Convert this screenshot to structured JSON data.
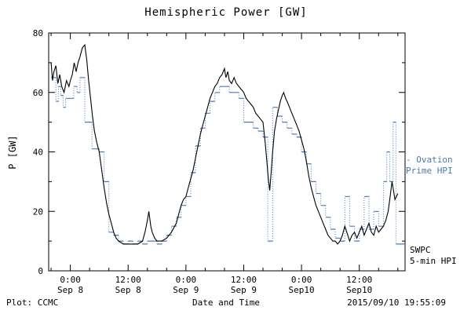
{
  "title": "Hemispheric Power [GW]",
  "axes": {
    "y_label": "P [GW]",
    "x_label": "Date and Time"
  },
  "footer": {
    "left": "Plot: CCMC",
    "right": "2015/09/10 19:55:09"
  },
  "legend": {
    "ovation_line1": "- Ovation",
    "ovation_line2": "Prime HPI",
    "swpc_line1": "SWPC",
    "swpc_line2": "5-min HPI"
  },
  "chart_data": {
    "type": "line",
    "title": "Hemispheric Power [GW]",
    "xlabel": "Date and Time",
    "ylabel": "P [GW]",
    "x_unit": "hours relative to Sep 8 00:00",
    "xlim": [
      -4.5,
      69.5
    ],
    "ylim": [
      0,
      80
    ],
    "yticks": [
      0,
      20,
      40,
      60,
      80
    ],
    "y_minor_step": 10,
    "x_minor_step": 4,
    "grid": false,
    "legend_position": "right-outside",
    "colors": {
      "ovation": "#4b79b8",
      "swpc": "#000000"
    },
    "xticks": [
      {
        "t": 0,
        "line1": "0:00",
        "line2": "Sep 8"
      },
      {
        "t": 12,
        "line1": "12:00",
        "line2": "Sep 8"
      },
      {
        "t": 24,
        "line1": "0:00",
        "line2": "Sep 9"
      },
      {
        "t": 36,
        "line1": "12:00",
        "line2": "Sep 9"
      },
      {
        "t": 48,
        "line1": "0:00",
        "line2": "Sep10"
      },
      {
        "t": 60,
        "line1": "12:00",
        "line2": "Sep10"
      }
    ],
    "series": [
      {
        "name": "Ovation Prime HPI",
        "style": "step-dotted",
        "points": [
          [
            -4,
            65
          ],
          [
            -3,
            57
          ],
          [
            -2.5,
            62
          ],
          [
            -2,
            59
          ],
          [
            -1.5,
            55
          ],
          [
            -1,
            58
          ],
          [
            0,
            58
          ],
          [
            0.7,
            62
          ],
          [
            1.4,
            60
          ],
          [
            2,
            65
          ],
          [
            3,
            50
          ],
          [
            4.5,
            41
          ],
          [
            6,
            40
          ],
          [
            7,
            30
          ],
          [
            8,
            13
          ],
          [
            9,
            12
          ],
          [
            10,
            10
          ],
          [
            11,
            9
          ],
          [
            12,
            10
          ],
          [
            13,
            9
          ],
          [
            14,
            10
          ],
          [
            15,
            9
          ],
          [
            16,
            10
          ],
          [
            17,
            10
          ],
          [
            18,
            9
          ],
          [
            19,
            10
          ],
          [
            20,
            12
          ],
          [
            21,
            15
          ],
          [
            22,
            18
          ],
          [
            23,
            22
          ],
          [
            24,
            25
          ],
          [
            25,
            33
          ],
          [
            26,
            42
          ],
          [
            27,
            48
          ],
          [
            28,
            53
          ],
          [
            29,
            57
          ],
          [
            30,
            60
          ],
          [
            31,
            62
          ],
          [
            32,
            62
          ],
          [
            33,
            60
          ],
          [
            34,
            60
          ],
          [
            35,
            58
          ],
          [
            36,
            50
          ],
          [
            37,
            50
          ],
          [
            38,
            48
          ],
          [
            39,
            47
          ],
          [
            40,
            45
          ],
          [
            41,
            10
          ],
          [
            42,
            55
          ],
          [
            43,
            52
          ],
          [
            44,
            50
          ],
          [
            45,
            48
          ],
          [
            46,
            46
          ],
          [
            47,
            45
          ],
          [
            48,
            40
          ],
          [
            49,
            36
          ],
          [
            50,
            30
          ],
          [
            51,
            26
          ],
          [
            52,
            22
          ],
          [
            53,
            18
          ],
          [
            54,
            14
          ],
          [
            55,
            11
          ],
          [
            56,
            10
          ],
          [
            57,
            25
          ],
          [
            58,
            15
          ],
          [
            59,
            10
          ],
          [
            60,
            14
          ],
          [
            61,
            25
          ],
          [
            62,
            14
          ],
          [
            63,
            20
          ],
          [
            64,
            15
          ],
          [
            65,
            30
          ],
          [
            65.7,
            40
          ],
          [
            66.3,
            30
          ],
          [
            67,
            50
          ],
          [
            67.6,
            9
          ]
        ]
      },
      {
        "name": "SWPC 5-min HPI",
        "style": "solid",
        "points": [
          [
            -4,
            70
          ],
          [
            -3.7,
            64
          ],
          [
            -3.4,
            67
          ],
          [
            -3,
            69
          ],
          [
            -2.6,
            63
          ],
          [
            -2.2,
            66
          ],
          [
            -1.8,
            62
          ],
          [
            -1.3,
            60
          ],
          [
            -0.8,
            64
          ],
          [
            -0.3,
            62
          ],
          [
            0,
            64
          ],
          [
            0.4,
            66
          ],
          [
            0.8,
            70
          ],
          [
            1.2,
            67
          ],
          [
            1.6,
            70
          ],
          [
            2,
            72
          ],
          [
            2.5,
            75
          ],
          [
            3,
            76
          ],
          [
            3.4,
            71
          ],
          [
            3.8,
            64
          ],
          [
            4.2,
            58
          ],
          [
            4.6,
            52
          ],
          [
            5,
            47
          ],
          [
            5.5,
            43
          ],
          [
            6,
            40
          ],
          [
            6.5,
            34
          ],
          [
            7,
            28
          ],
          [
            7.5,
            23
          ],
          [
            8,
            19
          ],
          [
            8.5,
            16
          ],
          [
            9,
            13
          ],
          [
            9.5,
            11
          ],
          [
            10,
            10
          ],
          [
            11,
            9
          ],
          [
            12,
            9
          ],
          [
            13,
            9
          ],
          [
            14,
            9
          ],
          [
            15,
            10
          ],
          [
            15.5,
            13
          ],
          [
            16,
            17
          ],
          [
            16.3,
            20
          ],
          [
            16.7,
            15
          ],
          [
            17,
            13
          ],
          [
            17.5,
            11
          ],
          [
            18,
            10
          ],
          [
            19,
            10
          ],
          [
            20,
            11
          ],
          [
            21,
            13
          ],
          [
            22,
            16
          ],
          [
            22.5,
            19
          ],
          [
            23,
            22
          ],
          [
            23.5,
            24
          ],
          [
            24,
            25
          ],
          [
            24.5,
            28
          ],
          [
            25,
            31
          ],
          [
            25.5,
            34
          ],
          [
            26,
            38
          ],
          [
            26.5,
            42
          ],
          [
            27,
            46
          ],
          [
            27.5,
            49
          ],
          [
            28,
            52
          ],
          [
            28.5,
            55
          ],
          [
            29,
            58
          ],
          [
            29.5,
            60
          ],
          [
            30,
            62
          ],
          [
            30.5,
            63
          ],
          [
            31,
            65
          ],
          [
            31.5,
            66
          ],
          [
            32,
            68
          ],
          [
            32.3,
            65
          ],
          [
            32.7,
            67
          ],
          [
            33,
            64
          ],
          [
            33.5,
            63
          ],
          [
            34,
            65
          ],
          [
            34.5,
            63
          ],
          [
            35,
            62
          ],
          [
            35.5,
            61
          ],
          [
            36,
            60
          ],
          [
            36.5,
            58
          ],
          [
            37,
            57
          ],
          [
            37.5,
            56
          ],
          [
            38,
            55
          ],
          [
            38.5,
            53
          ],
          [
            39,
            52
          ],
          [
            39.5,
            51
          ],
          [
            40,
            50
          ],
          [
            40.4,
            44
          ],
          [
            40.8,
            37
          ],
          [
            41.1,
            31
          ],
          [
            41.4,
            27
          ],
          [
            41.7,
            33
          ],
          [
            42,
            40
          ],
          [
            42.4,
            47
          ],
          [
            42.8,
            51
          ],
          [
            43.2,
            54
          ],
          [
            43.6,
            57
          ],
          [
            44,
            59
          ],
          [
            44.3,
            60
          ],
          [
            44.7,
            58
          ],
          [
            45,
            57
          ],
          [
            45.5,
            55
          ],
          [
            46,
            53
          ],
          [
            46.5,
            51
          ],
          [
            47,
            49
          ],
          [
            47.5,
            47
          ],
          [
            48,
            44
          ],
          [
            48.5,
            41
          ],
          [
            49,
            37
          ],
          [
            49.5,
            32
          ],
          [
            50,
            28
          ],
          [
            50.5,
            25
          ],
          [
            51,
            22
          ],
          [
            51.5,
            20
          ],
          [
            52,
            18
          ],
          [
            52.5,
            16
          ],
          [
            53,
            14
          ],
          [
            53.5,
            12
          ],
          [
            54,
            11
          ],
          [
            54.5,
            10
          ],
          [
            55,
            10
          ],
          [
            55.5,
            9
          ],
          [
            56,
            10
          ],
          [
            56.5,
            12
          ],
          [
            57,
            15
          ],
          [
            57.4,
            13
          ],
          [
            57.8,
            11
          ],
          [
            58,
            10
          ],
          [
            58.5,
            12
          ],
          [
            59,
            13
          ],
          [
            59.5,
            11
          ],
          [
            60,
            13
          ],
          [
            60.5,
            15
          ],
          [
            61,
            12
          ],
          [
            61.5,
            14
          ],
          [
            62,
            16
          ],
          [
            62.5,
            13
          ],
          [
            63,
            12
          ],
          [
            63.5,
            15
          ],
          [
            64,
            13
          ],
          [
            64.5,
            14
          ],
          [
            65,
            15
          ],
          [
            65.5,
            17
          ],
          [
            66,
            20
          ],
          [
            66.4,
            25
          ],
          [
            66.8,
            30
          ],
          [
            67.1,
            27
          ],
          [
            67.4,
            24
          ],
          [
            67.7,
            25
          ],
          [
            68,
            26
          ]
        ]
      }
    ]
  }
}
